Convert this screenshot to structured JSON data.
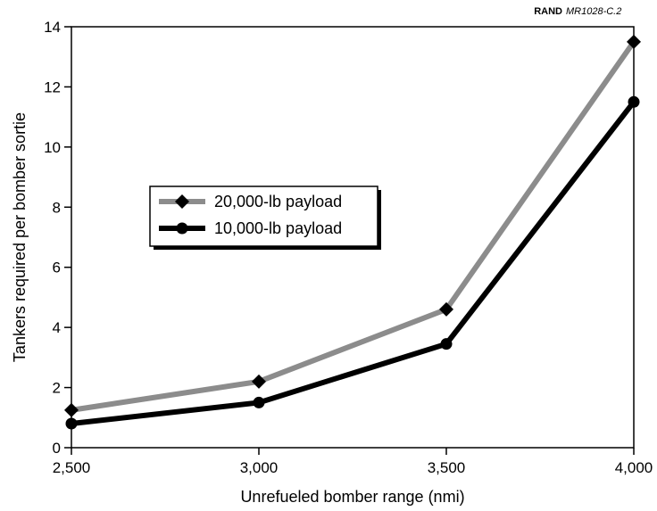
{
  "credit": {
    "org": "RAND",
    "code": "MR1028-C.2"
  },
  "chart_data": {
    "type": "line",
    "x": [
      2500,
      3000,
      3500,
      4000
    ],
    "x_tick_labels": [
      "2,500",
      "3,000",
      "3,500",
      "4,000"
    ],
    "y_tick_labels": [
      "0",
      "2",
      "4",
      "6",
      "8",
      "10",
      "12",
      "14"
    ],
    "xlim": [
      2500,
      4000
    ],
    "ylim": [
      0,
      14
    ],
    "xlabel": "Unrefueled bomber range (nmi)",
    "ylabel": "Tankers required per bomber sortie",
    "grid": false,
    "legend_position": "center-left",
    "series": [
      {
        "name": "20,000-lb payload",
        "values": [
          1.25,
          2.2,
          4.6,
          13.5
        ],
        "color": "#8c8c8c",
        "marker": "diamond"
      },
      {
        "name": "10,000-lb payload",
        "values": [
          0.8,
          1.5,
          3.45,
          11.5
        ],
        "color": "#000000",
        "marker": "circle"
      }
    ]
  }
}
